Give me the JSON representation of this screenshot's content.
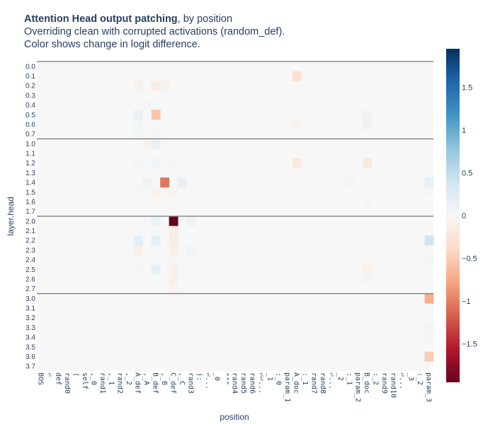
{
  "chart_data": {
    "type": "heatmap",
    "title": "Attention Head output patching",
    "title_suffix": ", by position",
    "subtitle_lines": [
      "Overriding clean with corrupted activations (random_def).",
      "Color shows change in logit difference."
    ],
    "xlabel": "position",
    "ylabel": "layer.head",
    "x_labels": [
      "BOS",
      "⏎",
      "def",
      "rand0",
      "(",
      "self",
      ",_0",
      "rand1",
      ",_1",
      "rand2",
      ",_2",
      "A_def",
      ",_A",
      "B_def",
      ",_B",
      "C_def",
      ",_C",
      "rand3",
      "):",
      "⏎...",
      "_0",
      "\"\"\"",
      "rand4",
      "rand5",
      "rand6",
      "⏎⏎...",
      "_1",
      ":_0",
      "param_1",
      "A_doc",
      ":_1",
      "rand7",
      "rand8",
      "⏎...",
      "_2",
      ":_1",
      "param_2",
      "B_doc",
      ":_2",
      "rand9",
      "rand10",
      "⏎...",
      "_3",
      ":_2",
      "param_3"
    ],
    "y_labels": [
      "0.0",
      "0.1",
      "0.2",
      "0.3",
      "0.4",
      "0.5",
      "0.6",
      "0.7",
      "1.0",
      "1.1",
      "1.2",
      "1.3",
      "1.4",
      "1.5",
      "1.6",
      "1.7",
      "2.0",
      "2.1",
      "2.2",
      "2.3",
      "2.4",
      "2.5",
      "2.6",
      "2.7",
      "3.0",
      "3.1",
      "3.2",
      "3.3",
      "3.4",
      "3.5",
      "3.6",
      "3.7"
    ],
    "layer_separators_after_rows": [
      7,
      15,
      23
    ],
    "colorscale": "RdBu",
    "zrange": [
      -1.95,
      1.95
    ],
    "colorbar_ticks": [
      1.5,
      1,
      0.5,
      0,
      -0.5,
      -1,
      -1.5
    ],
    "colorbar_tick_labels": [
      "1.5",
      "1",
      "0.5",
      "0",
      "−0.5",
      "−1",
      "−1.5"
    ],
    "cells": [
      [
        1,
        29,
        -0.3
      ],
      [
        2,
        11,
        -0.08
      ],
      [
        2,
        13,
        -0.15
      ],
      [
        2,
        14,
        -0.08
      ],
      [
        4,
        12,
        0.03
      ],
      [
        5,
        11,
        0.12
      ],
      [
        5,
        13,
        -0.55
      ],
      [
        5,
        37,
        -0.1
      ],
      [
        6,
        11,
        0.05
      ],
      [
        6,
        29,
        -0.06
      ],
      [
        6,
        37,
        0.1
      ],
      [
        7,
        11,
        0.03
      ],
      [
        7,
        13,
        0.04
      ],
      [
        8,
        12,
        -0.08
      ],
      [
        8,
        13,
        0.15
      ],
      [
        10,
        11,
        0.04
      ],
      [
        10,
        13,
        0.06
      ],
      [
        10,
        15,
        -0.04
      ],
      [
        10,
        29,
        -0.2
      ],
      [
        10,
        37,
        -0.2
      ],
      [
        11,
        15,
        0.02
      ],
      [
        12,
        12,
        0.08
      ],
      [
        12,
        14,
        -1.05
      ],
      [
        12,
        16,
        0.15
      ],
      [
        12,
        35,
        0.05
      ],
      [
        12,
        44,
        0.15
      ],
      [
        13,
        11,
        0.04
      ],
      [
        13,
        13,
        -0.08
      ],
      [
        13,
        15,
        -0.05
      ],
      [
        13,
        44,
        -0.04
      ],
      [
        14,
        37,
        0.04
      ],
      [
        16,
        13,
        0.1
      ],
      [
        16,
        15,
        -2.0
      ],
      [
        16,
        17,
        0.1
      ],
      [
        17,
        15,
        -0.15
      ],
      [
        18,
        11,
        0.2
      ],
      [
        18,
        13,
        0.2
      ],
      [
        18,
        15,
        -0.15
      ],
      [
        18,
        44,
        0.4
      ],
      [
        19,
        11,
        -0.12
      ],
      [
        19,
        15,
        -0.12
      ],
      [
        19,
        17,
        0.06
      ],
      [
        20,
        15,
        -0.04
      ],
      [
        20,
        44,
        0.03
      ],
      [
        21,
        11,
        0.04
      ],
      [
        21,
        13,
        0.15
      ],
      [
        21,
        15,
        -0.1
      ],
      [
        21,
        37,
        -0.08
      ],
      [
        22,
        15,
        -0.1
      ],
      [
        22,
        37,
        -0.05
      ],
      [
        23,
        15,
        -0.06
      ],
      [
        24,
        44,
        -0.7
      ],
      [
        27,
        44,
        0.05
      ],
      [
        28,
        44,
        0.04
      ],
      [
        30,
        44,
        -0.5
      ]
    ]
  }
}
